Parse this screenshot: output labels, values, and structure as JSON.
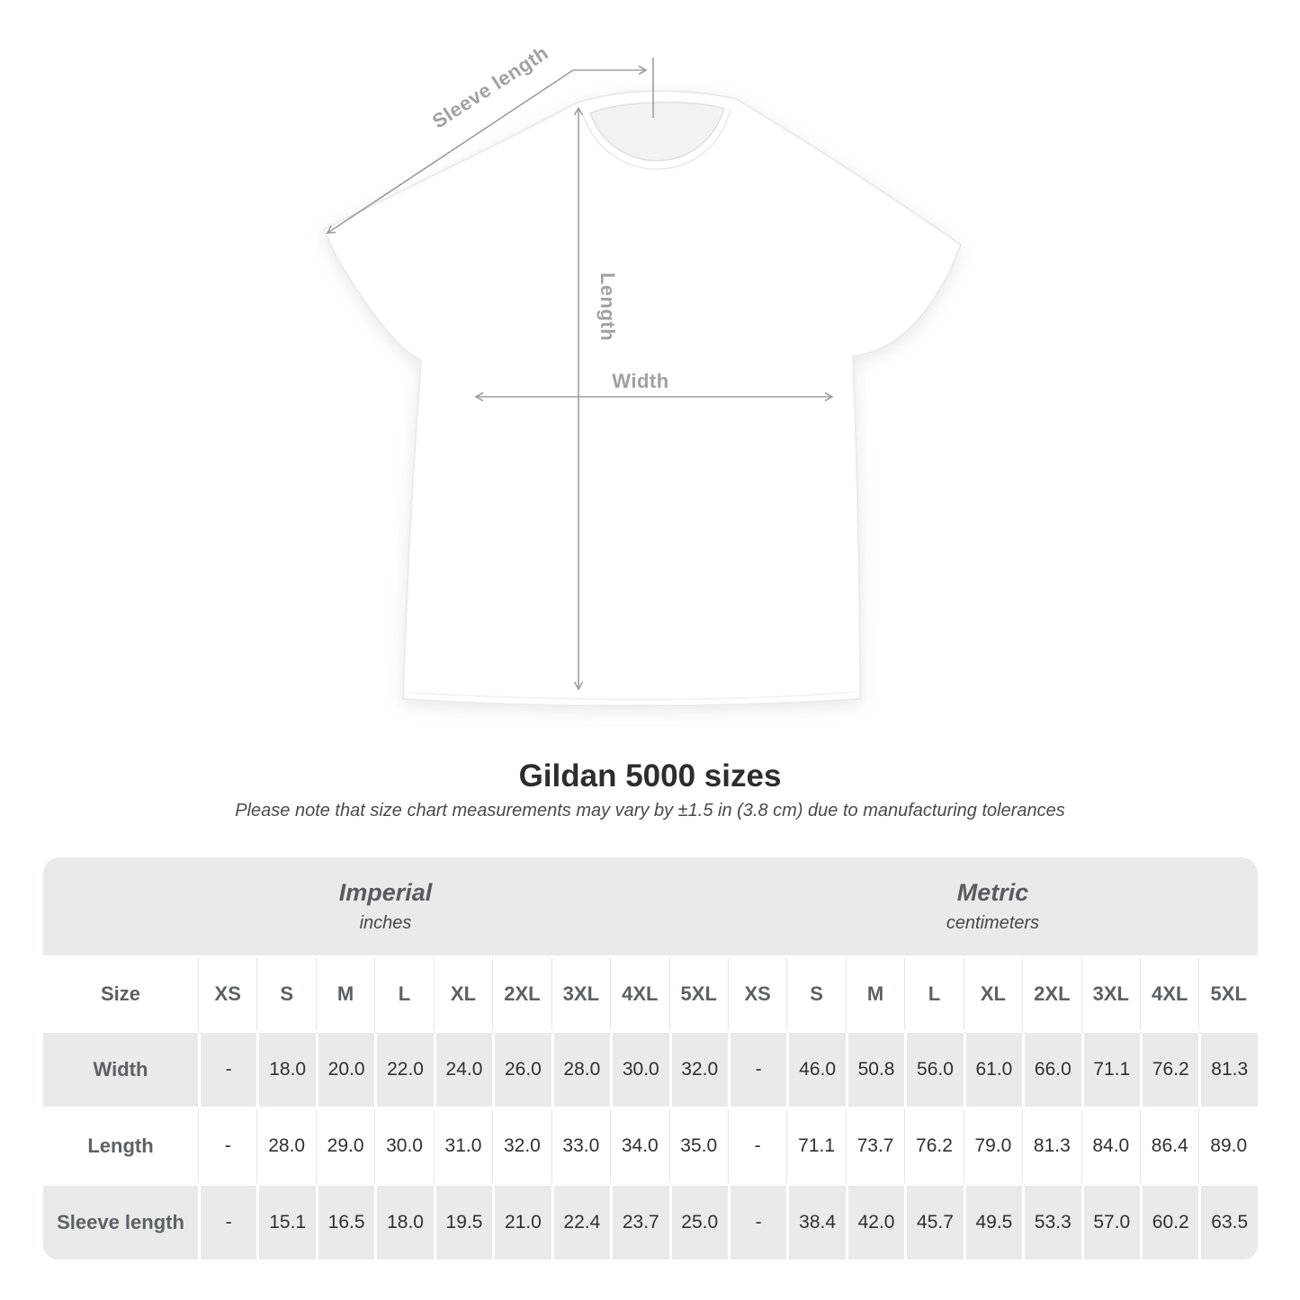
{
  "diagram": {
    "sleeve_length_label": "Sleeve length",
    "length_label": "Length",
    "width_label": "Width"
  },
  "title": "Gildan 5000 sizes",
  "subtitle": "Please note that size chart measurements may vary by ±1.5 in (3.8 cm) due to manufacturing tolerances",
  "table": {
    "unit_groups": [
      {
        "label": "Imperial",
        "sublabel": "inches"
      },
      {
        "label": "Metric",
        "sublabel": "centimeters"
      }
    ],
    "corner_label": "Size",
    "sizes": [
      "XS",
      "S",
      "M",
      "L",
      "XL",
      "2XL",
      "3XL",
      "4XL",
      "5XL"
    ],
    "rows": [
      {
        "label": "Width",
        "imperial": [
          "-",
          "18.0",
          "20.0",
          "22.0",
          "24.0",
          "26.0",
          "28.0",
          "30.0",
          "32.0"
        ],
        "metric": [
          "-",
          "46.0",
          "50.8",
          "56.0",
          "61.0",
          "66.0",
          "71.1",
          "76.2",
          "81.3"
        ]
      },
      {
        "label": "Length",
        "imperial": [
          "-",
          "28.0",
          "29.0",
          "30.0",
          "31.0",
          "32.0",
          "33.0",
          "34.0",
          "35.0"
        ],
        "metric": [
          "-",
          "71.1",
          "73.7",
          "76.2",
          "79.0",
          "81.3",
          "84.0",
          "86.4",
          "89.0"
        ]
      },
      {
        "label": "Sleeve length",
        "imperial": [
          "-",
          "15.1",
          "16.5",
          "18.0",
          "19.5",
          "21.0",
          "22.4",
          "23.7",
          "25.0"
        ],
        "metric": [
          "-",
          "38.4",
          "42.0",
          "45.7",
          "49.5",
          "53.3",
          "57.0",
          "60.2",
          "63.5"
        ]
      }
    ]
  },
  "colors": {
    "row_gray": "#e9eaea",
    "header_text": "#5b6165",
    "value_text": "#303030",
    "diagram_gray": "#a1a1a1",
    "title_text": "#2d2d2d"
  }
}
